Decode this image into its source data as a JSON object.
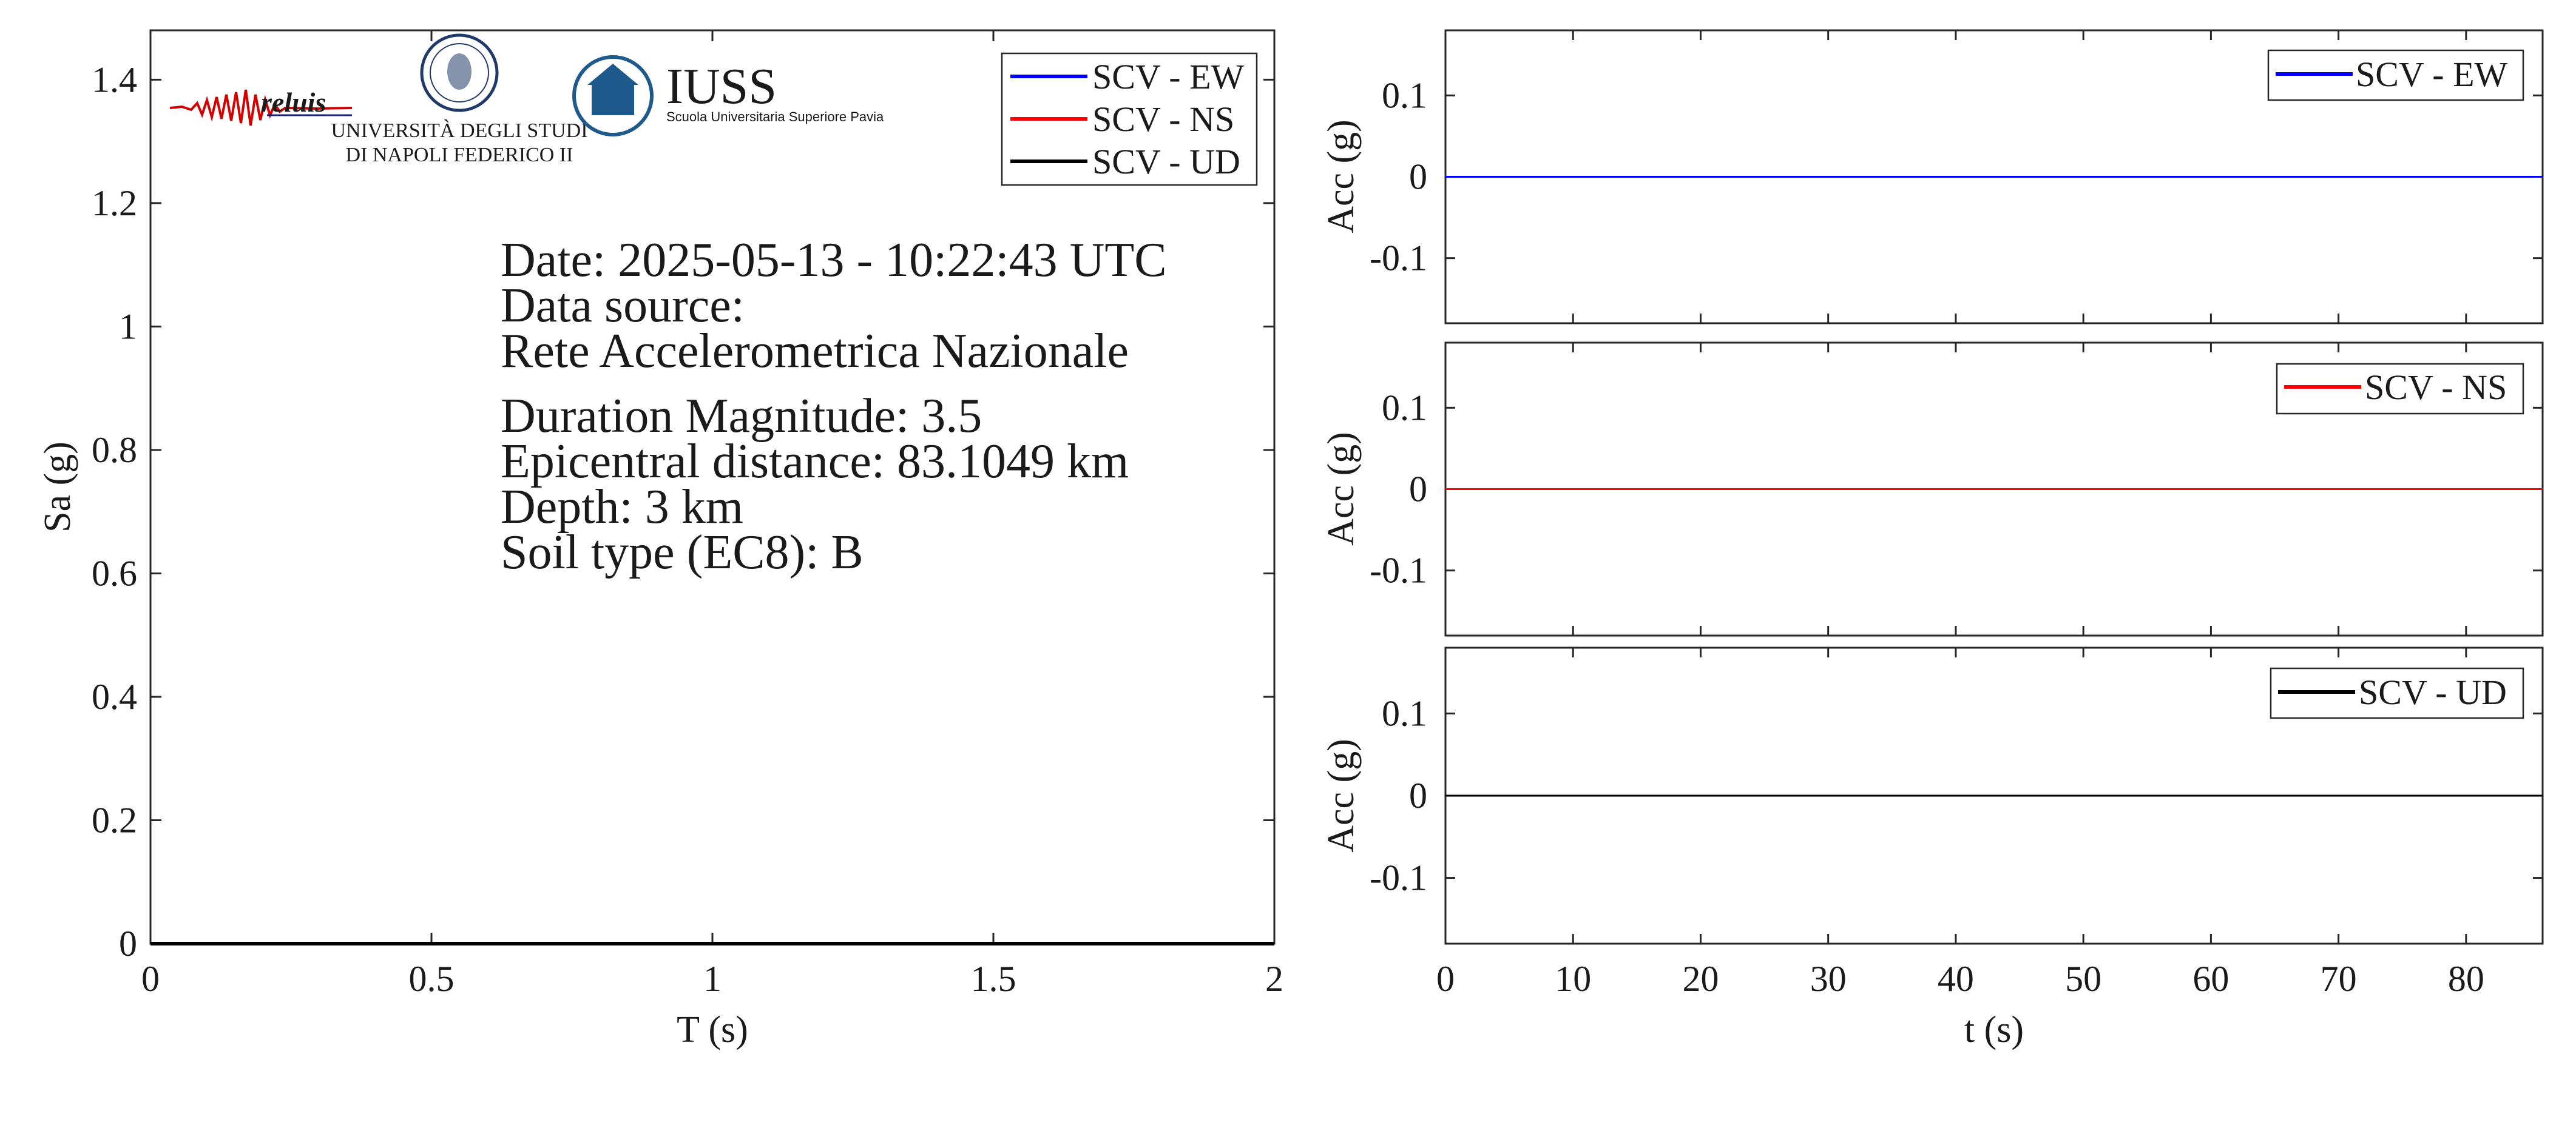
{
  "chart_data": [
    {
      "type": "line",
      "xlabel": "T (s)",
      "ylabel": "Sa (g)",
      "xlim": [
        0,
        2
      ],
      "ylim": [
        0,
        1.48
      ],
      "xticks": [
        0,
        0.5,
        1,
        1.5,
        2
      ],
      "xtick_labels": [
        "0",
        "0.5",
        "1",
        "1.5",
        "2"
      ],
      "yticks": [
        0,
        0.2,
        0.4,
        0.6,
        0.8,
        1,
        1.2,
        1.4
      ],
      "ytick_labels": [
        "0",
        "0.2",
        "0.4",
        "0.6",
        "0.8",
        "1",
        "1.2",
        "1.4"
      ],
      "legend_position": "top-right",
      "series": [
        {
          "name": "SCV - EW",
          "color": "#0000ff",
          "x": [
            0,
            2
          ],
          "y": [
            0,
            0
          ]
        },
        {
          "name": "SCV - NS",
          "color": "#ff0000",
          "x": [
            0,
            2
          ],
          "y": [
            0,
            0
          ]
        },
        {
          "name": "SCV - UD",
          "color": "#000000",
          "x": [
            0,
            2
          ],
          "y": [
            0,
            0
          ]
        }
      ],
      "annotations": [
        "Date: 2025-05-13 - 10:22:43 UTC",
        "Data source:",
        "Rete Accelerometrica Nazionale",
        "Duration Magnitude: 3.5",
        "Epicentral distance: 83.1049 km",
        "Depth: 3 km",
        "Soil type (EC8): B"
      ]
    },
    {
      "type": "line",
      "ylabel": "Acc (g)",
      "xlim": [
        0,
        86
      ],
      "ylim": [
        -0.18,
        0.18
      ],
      "yticks": [
        0.1,
        0,
        -0.1
      ],
      "ytick_labels": [
        "0.1",
        "0",
        "-0.1"
      ],
      "legend_position": "top-right",
      "series": [
        {
          "name": "SCV - EW",
          "color": "#0000ff",
          "x": [
            0,
            86
          ],
          "y": [
            0,
            0
          ]
        }
      ]
    },
    {
      "type": "line",
      "ylabel": "Acc (g)",
      "xlim": [
        0,
        86
      ],
      "ylim": [
        -0.18,
        0.18
      ],
      "yticks": [
        0.1,
        0,
        -0.1
      ],
      "ytick_labels": [
        "0.1",
        "0",
        "-0.1"
      ],
      "legend_position": "top-right",
      "series": [
        {
          "name": "SCV - NS",
          "color": "#ff0000",
          "x": [
            0,
            86
          ],
          "y": [
            0,
            0
          ]
        }
      ]
    },
    {
      "type": "line",
      "xlabel": "t (s)",
      "ylabel": "Acc (g)",
      "xlim": [
        0,
        86
      ],
      "ylim": [
        -0.18,
        0.18
      ],
      "xticks": [
        0,
        10,
        20,
        30,
        40,
        50,
        60,
        70,
        80
      ],
      "xtick_labels": [
        "0",
        "10",
        "20",
        "30",
        "40",
        "50",
        "60",
        "70",
        "80"
      ],
      "yticks": [
        0.1,
        0,
        -0.1
      ],
      "ytick_labels": [
        "0.1",
        "0",
        "-0.1"
      ],
      "legend_position": "top-right",
      "series": [
        {
          "name": "SCV - UD",
          "color": "#000000",
          "x": [
            0,
            86
          ],
          "y": [
            0,
            0
          ]
        }
      ]
    }
  ],
  "logos": {
    "reluis": {
      "text": "reluis",
      "colors": {
        "signal": "#d40000",
        "text": "#1a237e"
      }
    },
    "unina": {
      "line1": "UNIVERSITÀ DEGLI STUDI",
      "line2": "DI NAPOLI FEDERICO II",
      "color": "#1f3a68"
    },
    "iuss": {
      "name": "IUSS",
      "subtitle": "Scuola Universitaria Superiore Pavia",
      "color": "#1e5a8c"
    }
  }
}
